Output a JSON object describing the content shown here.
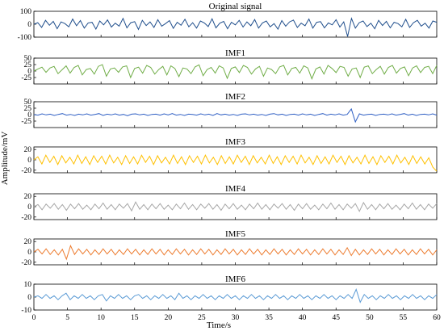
{
  "chart_data": {
    "type": "line",
    "xlabel": "Time/s",
    "ylabel": "Amplitude/mV",
    "xlim": [
      0,
      60
    ],
    "xticks": [
      0,
      5,
      10,
      15,
      20,
      25,
      30,
      35,
      40,
      45,
      50,
      55,
      60
    ],
    "grid": false,
    "panels": [
      {
        "title": "Original signal",
        "color": "#1f4e8c",
        "ylim": [
          -100,
          100
        ],
        "yticks": [
          100,
          0,
          -100
        ],
        "values": [
          0,
          12,
          -25,
          30,
          -8,
          22,
          -35,
          18,
          5,
          -20,
          40,
          -12,
          28,
          -30,
          10,
          15,
          -38,
          25,
          -5,
          33,
          -22,
          8,
          -15,
          45,
          -28,
          12,
          20,
          -40,
          30,
          -10,
          18,
          -25,
          35,
          -15,
          5,
          28,
          -32,
          15,
          -8,
          38,
          -20,
          12,
          -30,
          25,
          10,
          -18,
          42,
          -28,
          8,
          22,
          -35,
          15,
          -5,
          30,
          -22,
          18,
          -12,
          36,
          -30,
          10,
          25,
          -20,
          5,
          -38,
          28,
          -15,
          18,
          32,
          -25,
          8,
          -12,
          40,
          -30,
          15,
          20,
          -28,
          10,
          -5,
          35,
          -22,
          18,
          -95,
          45,
          -30,
          12,
          25,
          -18,
          8,
          -35,
          30,
          -10,
          22,
          -28,
          15,
          5,
          -20,
          38,
          -25,
          12,
          30,
          -15,
          8,
          -30,
          25,
          15
        ]
      },
      {
        "title": "IMF1",
        "color": "#70ad47",
        "ylim": [
          -50,
          50
        ],
        "yticks": [
          50,
          25,
          0,
          -25
        ],
        "values": [
          0,
          8,
          15,
          -5,
          12,
          18,
          -10,
          5,
          20,
          -8,
          14,
          22,
          -15,
          6,
          10,
          -12,
          18,
          25,
          -20,
          8,
          12,
          -5,
          16,
          20,
          -25,
          10,
          15,
          -8,
          22,
          14,
          -12,
          6,
          18,
          -15,
          20,
          10,
          -22,
          12,
          8,
          -10,
          16,
          24,
          -18,
          6,
          14,
          -8,
          20,
          12,
          -28,
          10,
          16,
          -6,
          22,
          14,
          -12,
          8,
          18,
          -20,
          12,
          6,
          -10,
          16,
          22,
          -15,
          10,
          14,
          -8,
          20,
          12,
          -30,
          8,
          16,
          -12,
          22,
          10,
          -6,
          18,
          14,
          -20,
          8,
          12,
          -25,
          15,
          20,
          -10,
          6,
          18,
          -12,
          14,
          22,
          -8,
          10,
          16,
          -18,
          12,
          20,
          -6,
          14,
          18,
          -10,
          22
        ]
      },
      {
        "title": "IMF2",
        "color": "#2f5fc4",
        "ylim": [
          -50,
          50
        ],
        "yticks": [
          50,
          25,
          0,
          -25
        ],
        "values": [
          0,
          -2,
          3,
          -1,
          2,
          -3,
          1,
          4,
          -2,
          1,
          -3,
          2,
          -1,
          3,
          -2,
          1,
          4,
          -3,
          2,
          -1,
          3,
          -2,
          1,
          -4,
          2,
          3,
          -1,
          2,
          -3,
          1,
          2,
          -2,
          3,
          -1,
          4,
          -2,
          1,
          -3,
          2,
          1,
          -2,
          3,
          -1,
          2,
          -3,
          4,
          -1,
          2,
          -2,
          1,
          -3,
          2,
          3,
          -1,
          2,
          -2,
          1,
          -3,
          2,
          4,
          -1,
          2,
          -3,
          1,
          2,
          -2,
          3,
          -1,
          2,
          -3,
          1,
          4,
          -2,
          2,
          -1,
          3,
          -2,
          1,
          22,
          -28,
          3,
          -2,
          1,
          2,
          -3,
          1,
          2,
          -1,
          3,
          -2,
          1,
          4,
          -2,
          2,
          -3,
          1,
          2,
          -1,
          3,
          -2
        ]
      },
      {
        "title": "IMF3",
        "color": "#ffc000",
        "ylim": [
          -25,
          25
        ],
        "yticks": [
          20,
          0,
          -20
        ],
        "values": [
          0,
          6,
          -8,
          9,
          -5,
          7,
          -9,
          8,
          -6,
          5,
          -8,
          9,
          -7,
          6,
          -9,
          8,
          -5,
          7,
          -8,
          9,
          -6,
          5,
          -9,
          8,
          -7,
          6,
          -8,
          9,
          -5,
          7,
          -9,
          8,
          -6,
          5,
          -8,
          9,
          -7,
          6,
          -9,
          8,
          -5,
          7,
          -8,
          9,
          -6,
          5,
          -9,
          8,
          -7,
          6,
          -8,
          9,
          -5,
          7,
          -9,
          8,
          -6,
          5,
          -8,
          9,
          -7,
          6,
          -9,
          8,
          -5,
          7,
          -8,
          9,
          -6,
          5,
          -9,
          8,
          -7,
          6,
          -8,
          9,
          -5,
          7,
          -9,
          8,
          -6,
          5,
          -8,
          9,
          -7,
          6,
          -9,
          8,
          -5,
          7,
          -8,
          9,
          -6,
          5,
          -9,
          8,
          -7,
          6,
          -8,
          4,
          -14,
          -22
        ]
      },
      {
        "title": "IMF4",
        "color": "#a6a6a6",
        "ylim": [
          -25,
          25
        ],
        "yticks": [
          20,
          0,
          -20
        ],
        "values": [
          0,
          4,
          -6,
          5,
          -3,
          6,
          -5,
          4,
          -7,
          5,
          -4,
          6,
          -5,
          3,
          -6,
          5,
          -4,
          7,
          -5,
          4,
          -6,
          5,
          -3,
          6,
          -8,
          9,
          -5,
          4,
          -6,
          5,
          -4,
          6,
          -5,
          3,
          -6,
          5,
          -4,
          7,
          -5,
          4,
          -6,
          5,
          -3,
          6,
          -5,
          4,
          -7,
          5,
          -4,
          6,
          -5,
          3,
          -6,
          5,
          -4,
          7,
          -5,
          4,
          -6,
          5,
          -3,
          6,
          -5,
          4,
          -7,
          5,
          -4,
          6,
          -5,
          3,
          -6,
          5,
          -4,
          7,
          -5,
          4,
          -6,
          5,
          -3,
          6,
          -9,
          8,
          -5,
          4,
          -6,
          5,
          -4,
          6,
          -5,
          3,
          -6,
          5,
          -4,
          7,
          -5,
          4,
          -6,
          5,
          -3,
          6
        ]
      },
      {
        "title": "IMF5",
        "color": "#ed7d31",
        "ylim": [
          -25,
          25
        ],
        "yticks": [
          20,
          0,
          -20
        ],
        "values": [
          0,
          5,
          -4,
          6,
          -5,
          4,
          -6,
          5,
          -14,
          12,
          -5,
          6,
          -4,
          5,
          -6,
          4,
          -5,
          6,
          -4,
          5,
          -6,
          4,
          -5,
          6,
          -4,
          5,
          -6,
          4,
          -5,
          6,
          -4,
          5,
          -6,
          4,
          -5,
          6,
          -4,
          5,
          -6,
          4,
          -5,
          6,
          -4,
          5,
          -6,
          4,
          -5,
          6,
          -4,
          5,
          -6,
          4,
          -5,
          6,
          -4,
          5,
          -6,
          4,
          -5,
          6,
          -4,
          5,
          -6,
          4,
          -5,
          6,
          -4,
          5,
          -6,
          4,
          -5,
          6,
          -4,
          5,
          -6,
          4,
          -5,
          8,
          -7,
          5,
          -6,
          4,
          -5,
          6,
          -4,
          5,
          -6,
          4,
          -5,
          6,
          -4,
          5,
          -6,
          4,
          -5,
          6,
          -4,
          5,
          -6,
          4
        ]
      },
      {
        "title": "IMF6",
        "color": "#5b9bd5",
        "ylim": [
          -10,
          10
        ],
        "yticks": [
          10,
          0,
          -10
        ],
        "values": [
          0,
          1,
          -1,
          2,
          -1,
          1,
          -2,
          1,
          3,
          -2,
          1,
          -1,
          2,
          -1,
          1,
          -2,
          1,
          2,
          -3,
          1,
          -1,
          2,
          -1,
          1,
          -2,
          1,
          2,
          -1,
          1,
          -2,
          1,
          -1,
          2,
          -1,
          1,
          -2,
          3,
          -1,
          1,
          -2,
          1,
          -1,
          2,
          -1,
          1,
          -2,
          1,
          -1,
          2,
          -1,
          1,
          -2,
          1,
          -1,
          2,
          -1,
          1,
          -2,
          1,
          -1,
          2,
          -1,
          1,
          -2,
          1,
          -1,
          2,
          -1,
          1,
          -2,
          1,
          -1,
          2,
          -1,
          1,
          -2,
          1,
          -1,
          2,
          -1,
          6,
          -4,
          2,
          -1,
          1,
          -2,
          1,
          -1,
          2,
          -1,
          1,
          -2,
          1,
          -1,
          2,
          -1,
          1,
          -2,
          1,
          -1,
          2
        ]
      }
    ]
  }
}
